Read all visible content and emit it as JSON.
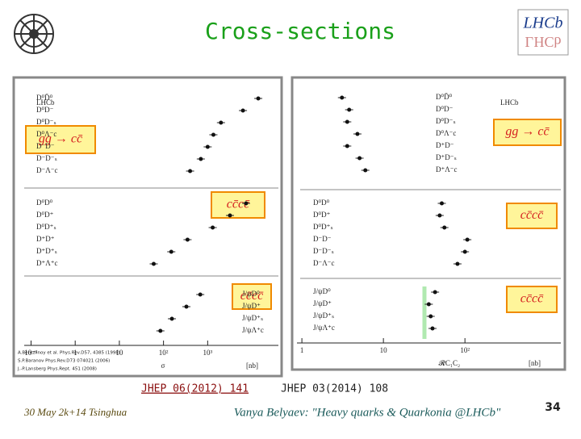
{
  "title": "Cross-sections",
  "left_plot": {
    "experiment": "LHCb",
    "log_x": true,
    "xlim": [
      0.07,
      40000
    ],
    "xticks": [
      {
        "value": 0.1,
        "label": "10⁻¹"
      },
      1,
      10,
      {
        "value": 100,
        "label": "10²"
      },
      {
        "value": 1000,
        "label": "10³"
      }
    ],
    "xlabel": "σ",
    "unit": "[nb]",
    "groups": [
      {
        "process": "gg → cc̄",
        "rows": [
          "D⁰D̄⁰",
          "D⁰D⁻",
          "D⁰D⁻ₛ",
          "D⁰Λ⁻c",
          "D⁻D⁻",
          "D⁻D⁻ₛ",
          "D⁻Λ⁻c"
        ],
        "values": [
          14000,
          6300,
          2000,
          1350,
          1000,
          700,
          400
        ]
      },
      {
        "process": "cc̄cc̄",
        "rows": [
          "D⁰D⁰",
          "D⁰D⁺",
          "D⁰D⁺ₛ",
          "D⁺D⁺",
          "D⁺D⁺ₛ",
          "D⁺Λ⁺c"
        ],
        "values": [
          7400,
          3200,
          1300,
          350,
          150,
          60
        ]
      },
      {
        "process": "cc̄cc̄",
        "rows": [
          "J/ψD⁰",
          "J/ψD⁺",
          "J/ψD⁺ₛ",
          "J/ψΛ⁺c"
        ],
        "values": [
          680,
          330,
          155,
          85
        ]
      }
    ],
    "references": [
      "A.Berezhnoy et al. Phys.Rev.D57, 4385 (1998)",
      "S.P.Baranov Phys.Rev.D73 074021 (2006)",
      "J.-P.Lansberg Phys.Rept. 451 (2008)"
    ]
  },
  "right_plot": {
    "experiment": "LHCb",
    "log_x": true,
    "xlim": [
      0.87,
      1500
    ],
    "xticks": [
      1,
      10,
      {
        "value": 100,
        "label": "10²"
      }
    ],
    "xlabel": "𝓡C₁C₂",
    "unit": "[nb]",
    "groups": [
      {
        "process": "gg → cc̄",
        "rows": [
          "D⁰D̄⁰",
          "D⁰D⁻",
          "D⁰D⁻ₛ",
          "D⁰Λ⁻c",
          "D⁺D⁻",
          "D⁺D⁻ₛ",
          "D⁺Λ⁻c"
        ],
        "values": [
          3.1,
          3.8,
          3.6,
          4.8,
          3.6,
          5.1,
          6
        ]
      },
      {
        "process": "cc̄cc̄",
        "rows": [
          "D⁰D⁰",
          "D⁰D⁺",
          "D⁰D⁺ₛ",
          "D⁻D⁻",
          "D⁻D⁻ₛ",
          "D⁻Λ⁻c"
        ],
        "values": [
          52,
          49,
          56,
          107,
          100,
          81
        ]
      },
      {
        "process": "cc̄cc̄",
        "rows": [
          "J/ψD⁰",
          "J/ψD⁺",
          "J/ψD⁺ₛ",
          "J/ψΛ⁺c"
        ],
        "values": [
          43,
          36,
          38,
          40
        ]
      }
    ]
  },
  "journal_refs": [
    "JHEP 06(2012) 141",
    "JHEP 03(2014) 108"
  ],
  "footer": {
    "date": "30 May 2k+14 Tsinghua",
    "author": "Vanya Belyaev: \"Heavy quarks & Quarkonia @LHCb\"",
    "page": "34"
  }
}
